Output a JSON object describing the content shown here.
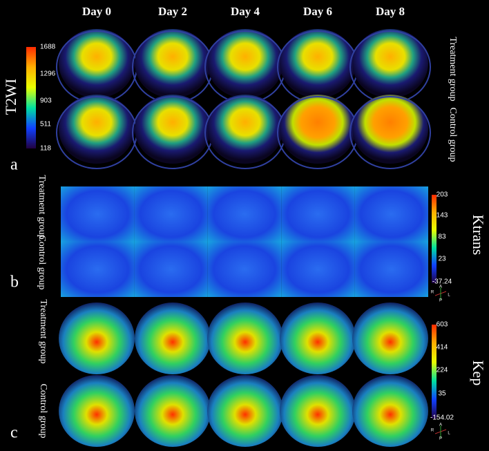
{
  "columns": [
    "Day 0",
    "Day 2",
    "Day 4",
    "Day 6",
    "Day 8"
  ],
  "panels": [
    {
      "letter": "a",
      "title": "T2WI",
      "rows": [
        "Treatment group",
        "Control group"
      ],
      "colorbar": [
        "1688",
        "1296",
        "903",
        "511",
        "118"
      ]
    },
    {
      "letter": "b",
      "title": "Ktrans",
      "rows": [
        "Treatment group",
        "Control group"
      ],
      "colorbar": [
        "203",
        "143",
        "83",
        "23",
        "-37.24"
      ],
      "orientation": [
        "A",
        "R",
        "L",
        "P"
      ]
    },
    {
      "letter": "c",
      "title": "Kep",
      "rows": [
        "Treatment group",
        "Control group"
      ],
      "colorbar": [
        "603",
        "414",
        "224",
        "35",
        "-154.02"
      ],
      "orientation": [
        "A",
        "R",
        "L",
        "P"
      ]
    }
  ]
}
